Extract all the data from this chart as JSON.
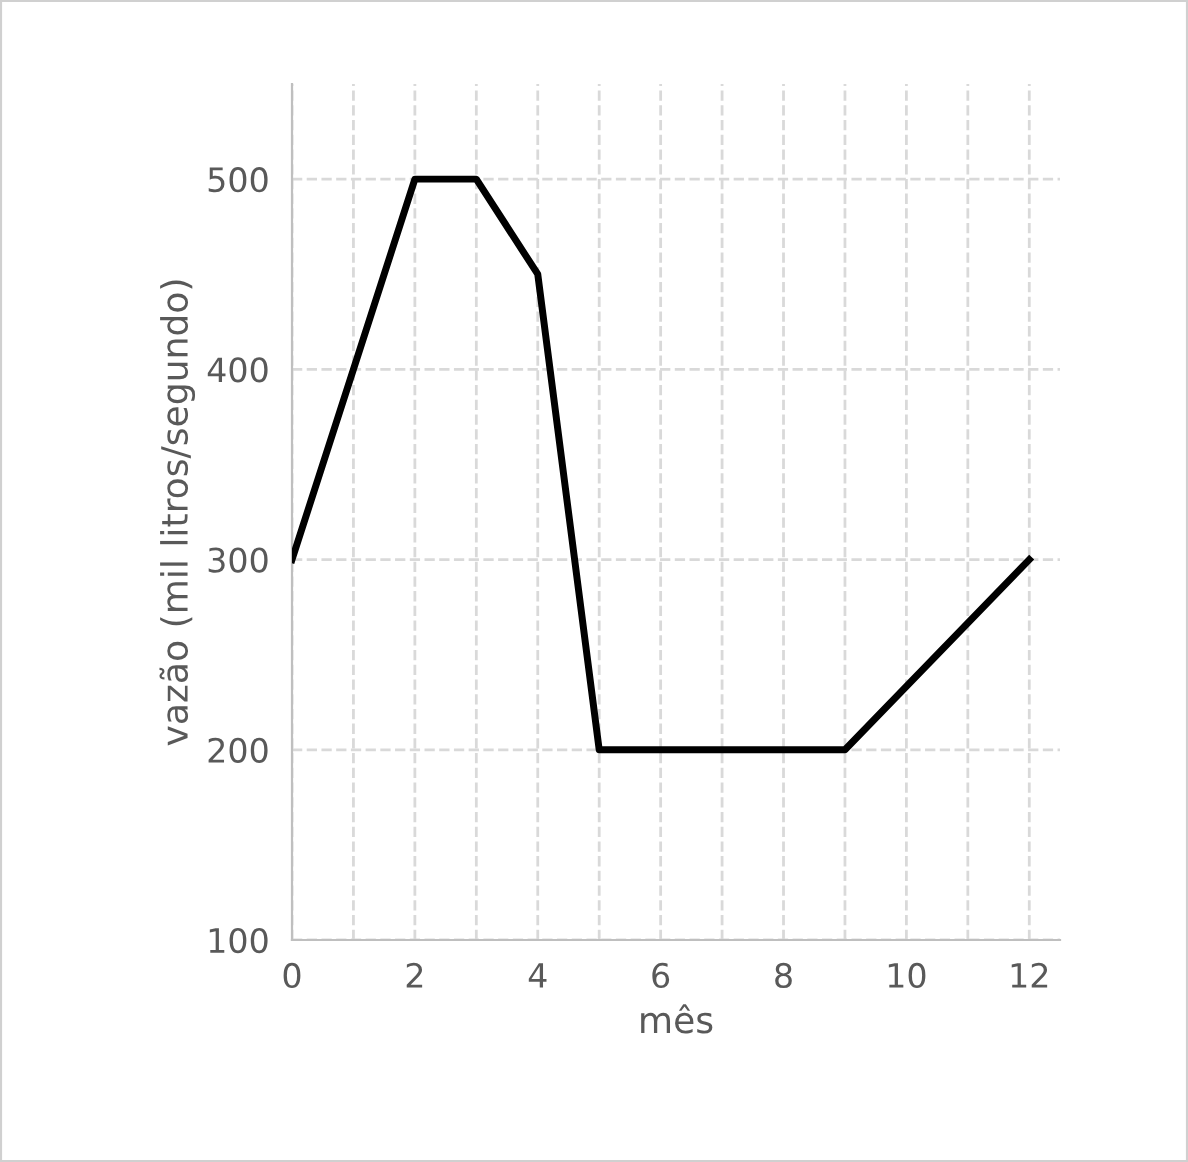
{
  "chart_data": {
    "type": "line",
    "xlabel": "mês",
    "ylabel": "vazão (mil litros/segundo)",
    "x": [
      0,
      2,
      3,
      4,
      5,
      9,
      12
    ],
    "values": [
      300,
      500,
      500,
      450,
      200,
      200,
      300
    ],
    "color": "#000000",
    "xlim": [
      0,
      12.5
    ],
    "ylim": [
      100,
      550
    ],
    "xticks": [
      0,
      {
        "value": 1,
        "label": null
      },
      2,
      {
        "value": 3,
        "label": null
      },
      4,
      {
        "value": 5,
        "label": null
      },
      6,
      {
        "value": 7,
        "label": null
      },
      8,
      {
        "value": 9,
        "label": null
      },
      10,
      {
        "value": 11,
        "label": null
      },
      12
    ],
    "yticks": [
      100,
      200,
      300,
      400,
      500
    ],
    "grid": true,
    "marker": "none",
    "line_style": "solid"
  }
}
